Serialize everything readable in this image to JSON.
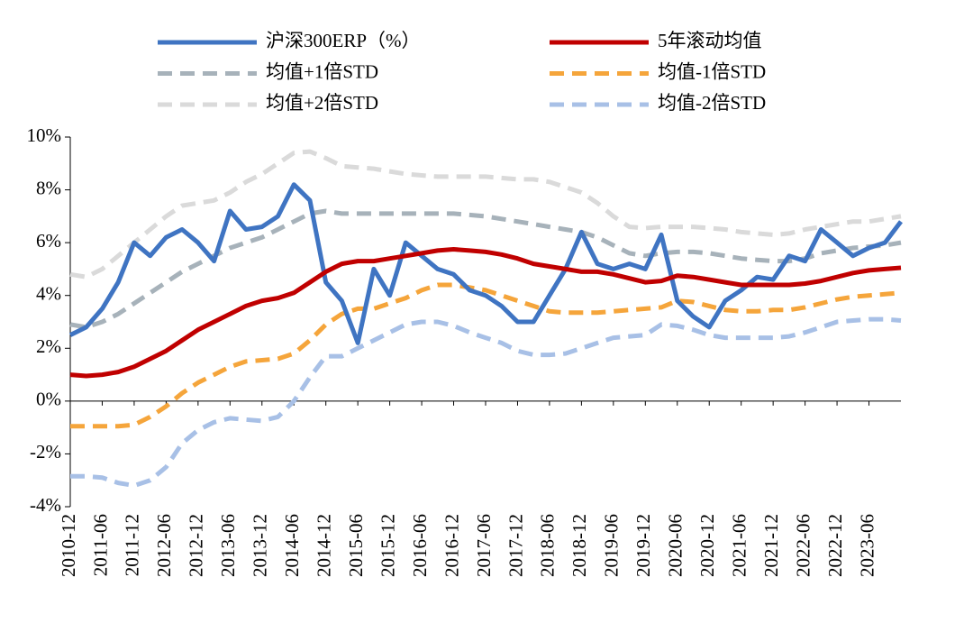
{
  "chart_data": {
    "type": "line",
    "categories": [
      "2010-12",
      null,
      "2011-06",
      null,
      "2011-12",
      null,
      "2012-06",
      null,
      "2012-12",
      null,
      "2013-06",
      null,
      "2013-12",
      null,
      "2014-06",
      null,
      "2014-12",
      null,
      "2015-06",
      null,
      "2015-12",
      null,
      "2016-06",
      null,
      "2016-12",
      null,
      "2017-06",
      null,
      "2017-12",
      null,
      "2018-06",
      null,
      "2018-12",
      null,
      "2019-06",
      null,
      "2019-12",
      null,
      "2020-06",
      null,
      "2020-12",
      null,
      "2021-06",
      null,
      "2021-12",
      null,
      "2022-06",
      null,
      "2022-12",
      null,
      "2023-06",
      null,
      null
    ],
    "series": [
      {
        "name": "沪深300ERP（%）",
        "color": "#3f74c2",
        "width": 5,
        "dash": false,
        "values": [
          2.5,
          2.8,
          3.5,
          4.5,
          6.0,
          5.5,
          6.2,
          6.5,
          6.0,
          5.3,
          7.2,
          6.5,
          6.6,
          7.0,
          8.2,
          7.6,
          4.5,
          3.8,
          2.2,
          5.0,
          4.0,
          6.0,
          5.5,
          5.0,
          4.8,
          4.2,
          4.0,
          3.6,
          3.0,
          3.0,
          4.0,
          5.0,
          6.4,
          5.2,
          5.0,
          5.2,
          5.0,
          6.3,
          3.8,
          3.2,
          2.8,
          3.8,
          4.2,
          4.7,
          4.6,
          5.5,
          5.3,
          6.5,
          6.0,
          5.5,
          5.8,
          6.0,
          6.8
        ]
      },
      {
        "name": "5年滚动均值",
        "color": "#c00000",
        "width": 5,
        "dash": false,
        "values": [
          1.0,
          0.95,
          1.0,
          1.1,
          1.3,
          1.6,
          1.9,
          2.3,
          2.7,
          3.0,
          3.3,
          3.6,
          3.8,
          3.9,
          4.1,
          4.5,
          4.9,
          5.2,
          5.3,
          5.3,
          5.4,
          5.5,
          5.6,
          5.7,
          5.75,
          5.7,
          5.65,
          5.55,
          5.4,
          5.2,
          5.1,
          5.0,
          4.9,
          4.9,
          4.8,
          4.65,
          4.5,
          4.55,
          4.75,
          4.7,
          4.6,
          4.5,
          4.4,
          4.4,
          4.4,
          4.4,
          4.45,
          4.55,
          4.7,
          4.85,
          4.95,
          5.0,
          5.05
        ]
      },
      {
        "name": "均值+1倍STD",
        "color": "#a7b2ba",
        "width": 5,
        "dash": true,
        "values": [
          2.9,
          2.8,
          3.0,
          3.3,
          3.7,
          4.1,
          4.5,
          4.9,
          5.2,
          5.5,
          5.8,
          6.0,
          6.2,
          6.5,
          6.8,
          7.1,
          7.2,
          7.1,
          7.1,
          7.1,
          7.1,
          7.1,
          7.1,
          7.1,
          7.1,
          7.05,
          7.0,
          6.9,
          6.8,
          6.7,
          6.6,
          6.5,
          6.4,
          6.2,
          5.9,
          5.6,
          5.5,
          5.6,
          5.65,
          5.65,
          5.6,
          5.5,
          5.4,
          5.35,
          5.3,
          5.3,
          5.4,
          5.6,
          5.7,
          5.8,
          5.85,
          5.9,
          6.0
        ]
      },
      {
        "name": "均值-1倍STD",
        "color": "#f5a53b",
        "width": 5,
        "dash": true,
        "values": [
          -0.95,
          -0.95,
          -0.95,
          -0.95,
          -0.9,
          -0.6,
          -0.2,
          0.3,
          0.7,
          1.0,
          1.3,
          1.5,
          1.55,
          1.6,
          1.8,
          2.3,
          2.9,
          3.3,
          3.5,
          3.5,
          3.7,
          3.9,
          4.2,
          4.4,
          4.4,
          4.3,
          4.2,
          4.0,
          3.8,
          3.6,
          3.4,
          3.35,
          3.35,
          3.35,
          3.4,
          3.45,
          3.5,
          3.55,
          3.8,
          3.75,
          3.6,
          3.45,
          3.4,
          3.4,
          3.45,
          3.45,
          3.55,
          3.7,
          3.85,
          3.95,
          4.0,
          4.05,
          4.1
        ]
      },
      {
        "name": "均值+2倍STD",
        "color": "#dadada",
        "width": 5,
        "dash": true,
        "values": [
          4.8,
          4.7,
          5.0,
          5.5,
          6.0,
          6.5,
          7.0,
          7.4,
          7.5,
          7.6,
          7.9,
          8.3,
          8.6,
          9.0,
          9.4,
          9.45,
          9.2,
          8.9,
          8.85,
          8.8,
          8.7,
          8.6,
          8.55,
          8.5,
          8.5,
          8.5,
          8.5,
          8.45,
          8.4,
          8.4,
          8.3,
          8.1,
          7.9,
          7.5,
          7.0,
          6.6,
          6.55,
          6.6,
          6.6,
          6.6,
          6.55,
          6.5,
          6.4,
          6.35,
          6.3,
          6.35,
          6.5,
          6.6,
          6.7,
          6.8,
          6.8,
          6.9,
          7.0
        ]
      },
      {
        "name": "均值-2倍STD",
        "color": "#a8c0e6",
        "width": 5,
        "dash": true,
        "values": [
          -2.85,
          -2.85,
          -2.9,
          -3.1,
          -3.2,
          -3.0,
          -2.5,
          -1.6,
          -1.1,
          -0.8,
          -0.65,
          -0.7,
          -0.75,
          -0.6,
          0.0,
          0.9,
          1.7,
          1.7,
          2.0,
          2.3,
          2.6,
          2.9,
          3.0,
          3.0,
          2.85,
          2.6,
          2.4,
          2.2,
          1.9,
          1.75,
          1.75,
          1.8,
          2.0,
          2.2,
          2.4,
          2.45,
          2.5,
          2.9,
          2.85,
          2.7,
          2.5,
          2.4,
          2.4,
          2.4,
          2.4,
          2.45,
          2.6,
          2.8,
          3.0,
          3.05,
          3.1,
          3.1,
          3.05
        ]
      }
    ],
    "ylim": [
      -4,
      10
    ],
    "yticks": [
      {
        "value": -4,
        "label": "-4%"
      },
      {
        "value": -2,
        "label": "-2%"
      },
      {
        "value": 0,
        "label": "0%"
      },
      {
        "value": 2,
        "label": "2%"
      },
      {
        "value": 4,
        "label": "4%"
      },
      {
        "value": 6,
        "label": "6%"
      },
      {
        "value": 8,
        "label": "8%"
      },
      {
        "value": 10,
        "label": "10%"
      }
    ],
    "grid": false,
    "legend": "top"
  }
}
